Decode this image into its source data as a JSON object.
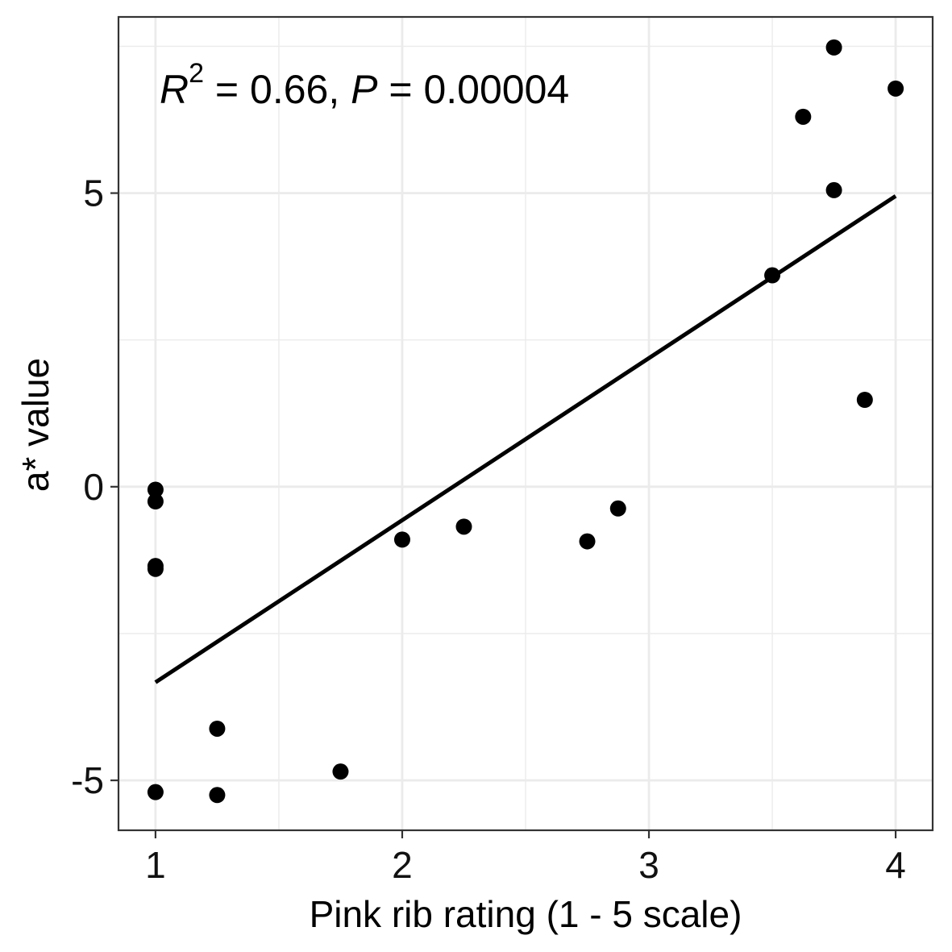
{
  "chart_data": {
    "type": "scatter",
    "title": "",
    "xlabel": "Pink rib rating (1 - 5 scale)",
    "ylabel": "a* value",
    "xlim": [
      0.85,
      4.15
    ],
    "ylim": [
      -5.85,
      8.0
    ],
    "x_ticks": [
      1,
      2,
      3,
      4
    ],
    "y_ticks": [
      -5,
      0,
      5
    ],
    "x_tick_labels": [
      "1",
      "2",
      "3",
      "4"
    ],
    "y_tick_labels": [
      "-5",
      "0",
      "5"
    ],
    "grid": true,
    "annotation": {
      "r_symbol": "R",
      "r_exponent": "2",
      "r_value": " = 0.66, ",
      "p_symbol": "P",
      "p_value": " = 0.00004"
    },
    "points": [
      {
        "x": 1.0,
        "y": -0.05
      },
      {
        "x": 1.0,
        "y": -0.25
      },
      {
        "x": 1.0,
        "y": -1.35
      },
      {
        "x": 1.0,
        "y": -1.4
      },
      {
        "x": 1.0,
        "y": -5.2
      },
      {
        "x": 1.25,
        "y": -4.12
      },
      {
        "x": 1.25,
        "y": -5.25
      },
      {
        "x": 1.75,
        "y": -4.85
      },
      {
        "x": 2.0,
        "y": -0.9
      },
      {
        "x": 2.25,
        "y": -0.68
      },
      {
        "x": 2.75,
        "y": -0.93
      },
      {
        "x": 2.875,
        "y": -0.37
      },
      {
        "x": 3.5,
        "y": 3.6
      },
      {
        "x": 3.625,
        "y": 6.3
      },
      {
        "x": 3.75,
        "y": 7.48
      },
      {
        "x": 3.75,
        "y": 5.05
      },
      {
        "x": 3.875,
        "y": 1.48
      },
      {
        "x": 4.0,
        "y": 6.78
      }
    ],
    "fit_line": {
      "x": [
        1.0,
        4.0
      ],
      "y": [
        -3.33,
        4.95
      ]
    },
    "colors": {
      "points": "#000000",
      "line": "#000000",
      "grid": "#ebebeb",
      "panel_border": "#333333"
    }
  }
}
